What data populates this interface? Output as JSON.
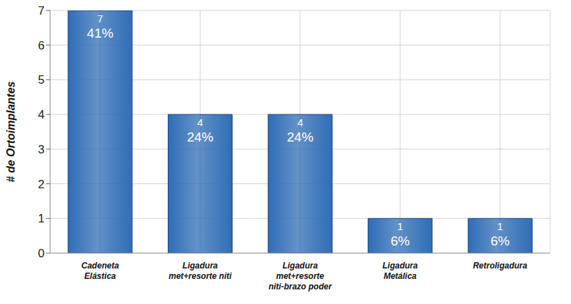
{
  "chart_data": {
    "type": "bar",
    "y_label": "# de Ortoimplantes",
    "categories": [
      "Cadeneta Elástica",
      "Ligadura met+resorte niti",
      "Ligadura met+resorte niti-brazo poder",
      "Ligadura Metálica",
      "Retroligadura"
    ],
    "values": [
      7,
      4,
      4,
      1,
      1
    ],
    "share_labels": [
      "41%",
      "24%",
      "24%",
      "6%",
      "6%"
    ],
    "color": "#2f6db5",
    "ylim": [
      0,
      7
    ],
    "yticks": [
      0,
      1,
      2,
      3,
      4,
      5,
      6,
      7
    ],
    "grid": true,
    "data_labels": true
  }
}
